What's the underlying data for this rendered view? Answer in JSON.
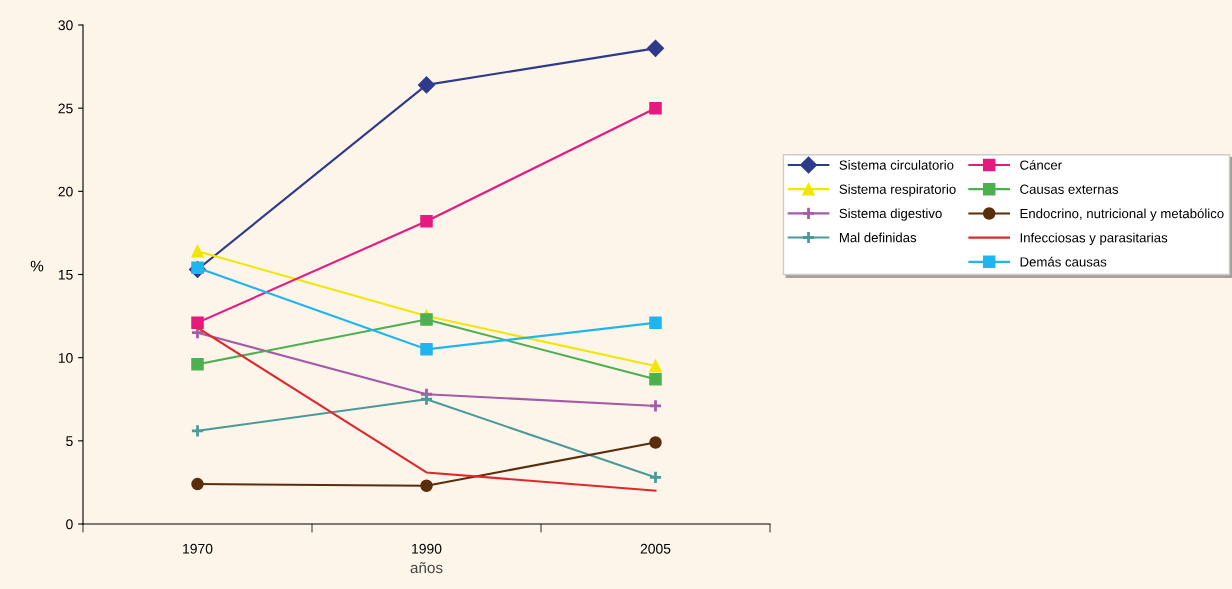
{
  "chart_data": {
    "type": "line",
    "xlabel": "años",
    "ylabel": "%",
    "categories": [
      "1970",
      "1990",
      "2005"
    ],
    "ylim": [
      0,
      30
    ],
    "yticks": [
      0,
      5,
      10,
      15,
      20,
      25,
      30
    ],
    "grid": false,
    "legend": "right",
    "series": [
      {
        "name": "Sistema circulatorio",
        "color": "#2e3a8c",
        "marker": "diamond",
        "values": [
          15.3,
          26.4,
          28.6
        ]
      },
      {
        "name": "Sistema respiratorio",
        "color": "#f2e600",
        "marker": "triangle",
        "values": [
          16.4,
          12.5,
          9.5
        ]
      },
      {
        "name": "Sistema digestivo",
        "color": "#a45ba8",
        "marker": "cross",
        "values": [
          11.5,
          7.8,
          7.1
        ]
      },
      {
        "name": "Mal definidas",
        "color": "#4a9a9a",
        "marker": "cross",
        "values": [
          5.6,
          7.5,
          2.8
        ]
      },
      {
        "name": "Cáncer",
        "color": "#e6197f",
        "marker": "square",
        "values": [
          12.1,
          18.2,
          25.0
        ]
      },
      {
        "name": "Causas externas",
        "color": "#4cb050",
        "marker": "square",
        "values": [
          9.6,
          12.3,
          8.7
        ]
      },
      {
        "name": "Endocrino, nutricional y metabólico",
        "color": "#5a2d0c",
        "marker": "circle",
        "values": [
          2.4,
          2.3,
          4.9
        ]
      },
      {
        "name": "Infecciosas y parasitarias",
        "color": "#e0262c",
        "marker": "none",
        "values": [
          11.8,
          3.1,
          2.0
        ]
      },
      {
        "name": "Demás causas",
        "color": "#1fb6ef",
        "marker": "square",
        "values": [
          15.4,
          10.5,
          12.1
        ]
      }
    ]
  }
}
